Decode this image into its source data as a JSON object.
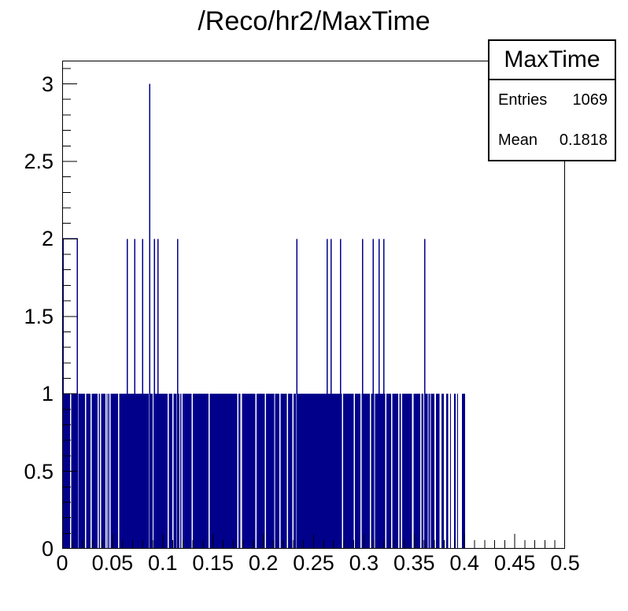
{
  "title": "/Reco/hr2/MaxTime",
  "stats_box": {
    "title": "MaxTime",
    "rows": [
      {
        "label": "Entries",
        "value": "1069"
      },
      {
        "label": "Mean",
        "value": "0.1818"
      }
    ]
  },
  "chart_data": {
    "type": "bar",
    "subtype": "root-1d-histogram",
    "title": "/Reco/hr2/MaxTime",
    "xlabel": "",
    "ylabel": "",
    "x_range": [
      0,
      0.5
    ],
    "y_range": [
      0,
      3.15
    ],
    "grid": false,
    "legend_position": "top-right-stats-box",
    "line_color": "#00008b",
    "axis_color": "#000000",
    "x_major_ticks": [
      0,
      0.05,
      0.1,
      0.15,
      0.2,
      0.25,
      0.3,
      0.35,
      0.4,
      0.45,
      0.5
    ],
    "x_tick_labels": [
      "0",
      "0.05",
      "0.1",
      "0.15",
      "0.2",
      "0.25",
      "0.3",
      "0.35",
      "0.4",
      "0.45",
      "0.5"
    ],
    "x_minor_step": 0.01,
    "y_major_ticks": [
      0,
      0.5,
      1,
      1.5,
      2,
      2.5,
      3
    ],
    "y_tick_labels": [
      "0",
      "0.5",
      "1",
      "1.5",
      "2",
      "2.5",
      "3"
    ],
    "y_minor_step": 0.1,
    "entries": 1069,
    "mean": 0.1818,
    "description": "Dense 1-count bins from x=0 to x=0.4 (appears as a solid block of height 1 with narrow empty gaps); empty from 0.4 to 0.5; a plateau of 2-count bins near x=0; isolated 2-count spikes; one 3-count spike near x=0.087.",
    "base_fill_range": [
      0.0,
      0.4005
    ],
    "base_gaps": [
      [
        0.0078,
        0.009
      ],
      [
        0.015,
        0.0162
      ],
      [
        0.0227,
        0.0239
      ],
      [
        0.0282,
        0.0294
      ],
      [
        0.0352,
        0.0364
      ],
      [
        0.0377,
        0.0389
      ],
      [
        0.043,
        0.0441
      ],
      [
        0.0448,
        0.0458
      ],
      [
        0.0469,
        0.0481
      ],
      [
        0.0555,
        0.0567
      ],
      [
        0.0859,
        0.0869
      ],
      [
        0.0898,
        0.0908
      ],
      [
        0.105,
        0.1062
      ],
      [
        0.1094,
        0.1106
      ],
      [
        0.1138,
        0.1149
      ],
      [
        0.1164,
        0.1174
      ],
      [
        0.1185,
        0.1197
      ],
      [
        0.1286,
        0.1298
      ],
      [
        0.1455,
        0.1467
      ],
      [
        0.1742,
        0.1754
      ],
      [
        0.1774,
        0.1786
      ],
      [
        0.192,
        0.1932
      ],
      [
        0.2016,
        0.2028
      ],
      [
        0.2107,
        0.2118
      ],
      [
        0.216,
        0.2172
      ],
      [
        0.2234,
        0.2246
      ],
      [
        0.229,
        0.23
      ],
      [
        0.2325,
        0.2337
      ],
      [
        0.278,
        0.2792
      ],
      [
        0.29,
        0.2912
      ],
      [
        0.2965,
        0.2977
      ],
      [
        0.306,
        0.3071
      ],
      [
        0.3101,
        0.3112
      ],
      [
        0.3145,
        0.3156
      ],
      [
        0.3211,
        0.3222
      ],
      [
        0.327,
        0.3282
      ],
      [
        0.334,
        0.3351
      ],
      [
        0.337,
        0.3381
      ],
      [
        0.348,
        0.3492
      ],
      [
        0.356,
        0.3571
      ],
      [
        0.359,
        0.3601
      ],
      [
        0.3635,
        0.3643
      ],
      [
        0.3657,
        0.3665
      ],
      [
        0.37,
        0.3716
      ],
      [
        0.375,
        0.377
      ],
      [
        0.3795,
        0.3817
      ],
      [
        0.3838,
        0.3858
      ],
      [
        0.3866,
        0.3896
      ],
      [
        0.3914,
        0.3927
      ],
      [
        0.3933,
        0.3974
      ]
    ],
    "level2_plateau": {
      "x_start": 0.0008,
      "x_end": 0.0149,
      "height": 2
    },
    "level2_spikes": [
      0.0649,
      0.0722,
      0.08,
      0.0918,
      0.0952,
      0.1148,
      0.2332,
      0.2634,
      0.2676,
      0.2767,
      0.2986,
      0.3091,
      0.3151,
      0.32,
      0.3605
    ],
    "level3_spikes": [
      0.0871
    ]
  }
}
